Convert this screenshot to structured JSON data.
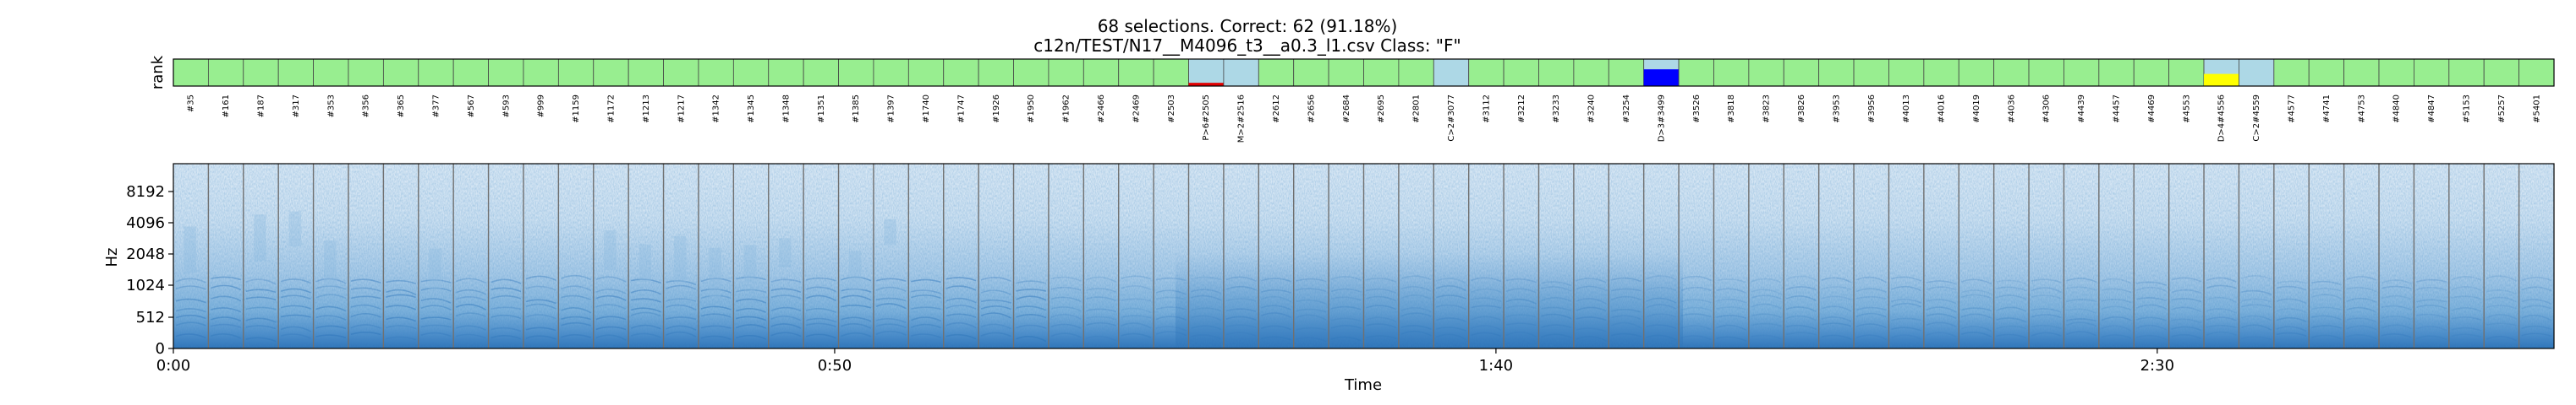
{
  "chart_data": {
    "type": "heatmap",
    "title_line1": "68 selections.  Correct: 62 (91.18%)",
    "title_line2": "c12n/TEST/N17__M4096_t3__a0.3_l1.csv  Class: \"F\"",
    "rank_ylabel": "rank",
    "spec_ylabel": "Hz",
    "xlabel": "Time",
    "duration_s": 180,
    "x_ticks": [
      {
        "t": 0,
        "label": "0:00"
      },
      {
        "t": 50,
        "label": "0:50"
      },
      {
        "t": 100,
        "label": "1:40"
      },
      {
        "t": 150,
        "label": "2:30"
      }
    ],
    "y_ticks": [
      "0",
      "512",
      "1024",
      "2048",
      "4096",
      "8192"
    ],
    "colors": {
      "correct": "#98ee90",
      "incorrect_bg": "#add8e6",
      "red": "#e00000",
      "blue": "#0000ff",
      "yellow": "#ffff00",
      "spec_light": "#dbeaf6",
      "spec_mid": "#8cbbe0",
      "spec_dark": "#2a72b8",
      "divider": "#707070"
    },
    "selections": [
      {
        "label": "#35",
        "status": "correct"
      },
      {
        "label": "#161",
        "status": "correct"
      },
      {
        "label": "#187",
        "status": "correct"
      },
      {
        "label": "#317",
        "status": "correct"
      },
      {
        "label": "#353",
        "status": "correct"
      },
      {
        "label": "#356",
        "status": "correct"
      },
      {
        "label": "#365",
        "status": "correct"
      },
      {
        "label": "#377",
        "status": "correct"
      },
      {
        "label": "#567",
        "status": "correct"
      },
      {
        "label": "#593",
        "status": "correct"
      },
      {
        "label": "#999",
        "status": "correct"
      },
      {
        "label": "#1159",
        "status": "correct"
      },
      {
        "label": "#1172",
        "status": "correct"
      },
      {
        "label": "#1213",
        "status": "correct"
      },
      {
        "label": "#1217",
        "status": "correct"
      },
      {
        "label": "#1342",
        "status": "correct"
      },
      {
        "label": "#1345",
        "status": "correct"
      },
      {
        "label": "#1348",
        "status": "correct"
      },
      {
        "label": "#1351",
        "status": "correct"
      },
      {
        "label": "#1385",
        "status": "correct"
      },
      {
        "label": "#1397",
        "status": "correct"
      },
      {
        "label": "#1740",
        "status": "correct"
      },
      {
        "label": "#1747",
        "status": "correct"
      },
      {
        "label": "#1926",
        "status": "correct"
      },
      {
        "label": "#1950",
        "status": "correct"
      },
      {
        "label": "#1962",
        "status": "correct"
      },
      {
        "label": "#2466",
        "status": "correct"
      },
      {
        "label": "#2469",
        "status": "correct"
      },
      {
        "label": "#2503",
        "status": "correct"
      },
      {
        "label": "P>6#2505",
        "status": "wrong",
        "bar": "red",
        "bar_level": 0.12
      },
      {
        "label": "M>2#2516",
        "status": "wrong",
        "bar": "none",
        "bar_level": 0
      },
      {
        "label": "#2612",
        "status": "correct"
      },
      {
        "label": "#2656",
        "status": "correct"
      },
      {
        "label": "#2684",
        "status": "correct"
      },
      {
        "label": "#2695",
        "status": "correct"
      },
      {
        "label": "#2801",
        "status": "correct"
      },
      {
        "label": "C>2#3077",
        "status": "wrong",
        "bar": "none",
        "bar_level": 0
      },
      {
        "label": "#3112",
        "status": "correct"
      },
      {
        "label": "#3212",
        "status": "correct"
      },
      {
        "label": "#3233",
        "status": "correct"
      },
      {
        "label": "#3240",
        "status": "correct"
      },
      {
        "label": "#3254",
        "status": "correct"
      },
      {
        "label": "D>3#3499",
        "status": "wrong",
        "bar": "blue",
        "bar_level": 0.62
      },
      {
        "label": "#3526",
        "status": "correct"
      },
      {
        "label": "#3818",
        "status": "correct"
      },
      {
        "label": "#3823",
        "status": "correct"
      },
      {
        "label": "#3826",
        "status": "correct"
      },
      {
        "label": "#3953",
        "status": "correct"
      },
      {
        "label": "#3956",
        "status": "correct"
      },
      {
        "label": "#4013",
        "status": "correct"
      },
      {
        "label": "#4016",
        "status": "correct"
      },
      {
        "label": "#4019",
        "status": "correct"
      },
      {
        "label": "#4036",
        "status": "correct"
      },
      {
        "label": "#4306",
        "status": "correct"
      },
      {
        "label": "#4439",
        "status": "correct"
      },
      {
        "label": "#4457",
        "status": "correct"
      },
      {
        "label": "#4469",
        "status": "correct"
      },
      {
        "label": "#4553",
        "status": "correct"
      },
      {
        "label": "D>4#4556",
        "status": "wrong",
        "bar": "yellow",
        "bar_level": 0.45
      },
      {
        "label": "C>2#4559",
        "status": "wrong",
        "bar": "none",
        "bar_level": 0
      },
      {
        "label": "#4577",
        "status": "correct"
      },
      {
        "label": "#4741",
        "status": "correct"
      },
      {
        "label": "#4753",
        "status": "correct"
      },
      {
        "label": "#4840",
        "status": "correct"
      },
      {
        "label": "#4847",
        "status": "correct"
      },
      {
        "label": "#5153",
        "status": "correct"
      },
      {
        "label": "#5257",
        "status": "correct"
      },
      {
        "label": "#5401",
        "status": "correct"
      }
    ]
  }
}
